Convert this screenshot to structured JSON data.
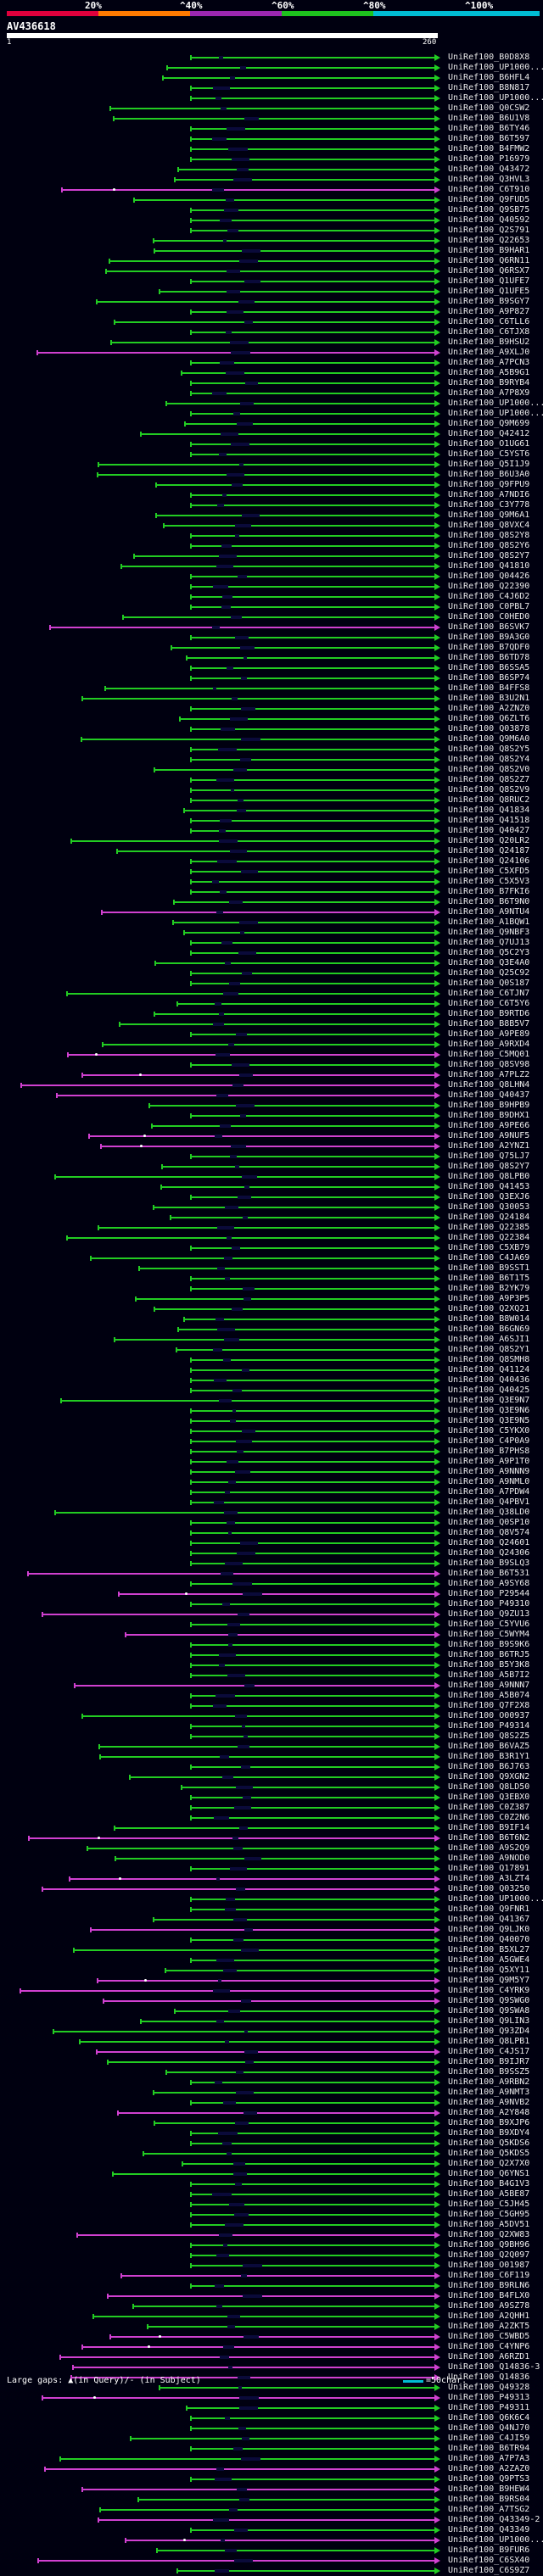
{
  "scale": {
    "labels": [
      "20%",
      "^40%",
      "^60%",
      "^80%",
      "^100%"
    ],
    "colors": [
      "#e0003c",
      "#ff7a00",
      "#9c27b0",
      "#1ec21e",
      "#00bcd4"
    ]
  },
  "query": {
    "title": "AV436618",
    "start": "1",
    "end": "260"
  },
  "footer": {
    "left": "Large gaps: ▲(in Query)/- (in Subject)",
    "right": "=50char."
  },
  "colors": {
    "green": "#22cc22",
    "magenta": "#d040d0",
    "background": "#000010"
  },
  "hits": [
    {
      "label": "UniRef100_B0D8X8",
      "color": "green"
    },
    {
      "label": "UniRef100_UP1000...",
      "color": "green"
    },
    {
      "label": "UniRef100_B6HFL4",
      "color": "green"
    },
    {
      "label": "UniRef100_B8N817",
      "color": "green"
    },
    {
      "label": "UniRef100_UP1000...",
      "color": "green"
    },
    {
      "label": "UniRef100_Q0CSW2",
      "color": "green"
    },
    {
      "label": "UniRef100_B6U1V8",
      "color": "green"
    },
    {
      "label": "UniRef100_B6TY46",
      "color": "green"
    },
    {
      "label": "UniRef100_B6T597",
      "color": "green"
    },
    {
      "label": "UniRef100_B4FMW2",
      "color": "green"
    },
    {
      "label": "UniRef100_P16979",
      "color": "green"
    },
    {
      "label": "UniRef100_Q43472",
      "color": "green"
    },
    {
      "label": "UniRef100_Q3HVL3",
      "color": "green"
    },
    {
      "label": "UniRef100_C6T910",
      "color": "magenta"
    },
    {
      "label": "UniRef100_Q9FUD5",
      "color": "green"
    },
    {
      "label": "UniRef100_Q9SB75",
      "color": "green"
    },
    {
      "label": "UniRef100_Q40592",
      "color": "green"
    },
    {
      "label": "UniRef100_Q2S791",
      "color": "green"
    },
    {
      "label": "UniRef100_Q22653",
      "color": "green"
    },
    {
      "label": "UniRef100_B9HAR1",
      "color": "green"
    },
    {
      "label": "UniRef100_Q6RN11",
      "color": "green"
    },
    {
      "label": "UniRef100_Q6RSX7",
      "color": "green"
    },
    {
      "label": "UniRef100_Q1UFE7",
      "color": "green"
    },
    {
      "label": "UniRef100_Q1UFE5",
      "color": "green"
    },
    {
      "label": "UniRef100_B9SGY7",
      "color": "green"
    },
    {
      "label": "UniRef100_A9P827",
      "color": "green"
    },
    {
      "label": "UniRef100_C6TLL6",
      "color": "green"
    },
    {
      "label": "UniRef100_C6TJX8",
      "color": "green"
    },
    {
      "label": "UniRef100_B9HSU2",
      "color": "green"
    },
    {
      "label": "UniRef100_A9XLJ0",
      "color": "magenta"
    },
    {
      "label": "UniRef100_A7PCN3",
      "color": "green"
    },
    {
      "label": "UniRef100_A5B9G1",
      "color": "green"
    },
    {
      "label": "UniRef100_B9RYB4",
      "color": "green"
    },
    {
      "label": "UniRef100_A7P8X9",
      "color": "green"
    },
    {
      "label": "UniRef100_UP1000...",
      "color": "green"
    },
    {
      "label": "UniRef100_UP1000...",
      "color": "green"
    },
    {
      "label": "UniRef100_Q9M699",
      "color": "green"
    },
    {
      "label": "UniRef100_Q42412",
      "color": "green"
    },
    {
      "label": "UniRef100_O1UG61",
      "color": "green"
    },
    {
      "label": "UniRef100_C5YST6",
      "color": "green"
    },
    {
      "label": "UniRef100_Q5I1J9",
      "color": "green"
    },
    {
      "label": "UniRef100_B6U3A0",
      "color": "green"
    },
    {
      "label": "UniRef100_Q9FPU9",
      "color": "green"
    },
    {
      "label": "UniRef100_A7NDI6",
      "color": "green"
    },
    {
      "label": "UniRef100_C3Y778",
      "color": "green"
    },
    {
      "label": "UniRef100_Q9M6A1",
      "color": "green"
    },
    {
      "label": "UniRef100_Q8VXC4",
      "color": "green"
    },
    {
      "label": "UniRef100_Q8S2Y8",
      "color": "green"
    },
    {
      "label": "UniRef100_Q8S2Y6",
      "color": "green"
    },
    {
      "label": "UniRef100_Q8S2Y7",
      "color": "green"
    },
    {
      "label": "UniRef100_Q41810",
      "color": "green"
    },
    {
      "label": "UniRef100_Q04426",
      "color": "green"
    },
    {
      "label": "UniRef100_Q22390",
      "color": "green"
    },
    {
      "label": "UniRef100_C4J6D2",
      "color": "green"
    },
    {
      "label": "UniRef100_C0PBL7",
      "color": "green"
    },
    {
      "label": "UniRef100_C0HED0",
      "color": "green"
    },
    {
      "label": "UniRef100_B6SVK7",
      "color": "magenta"
    },
    {
      "label": "UniRef100_B9A3G0",
      "color": "green"
    },
    {
      "label": "UniRef100_B7QDF0",
      "color": "green"
    },
    {
      "label": "UniRef100_B6TD78",
      "color": "green"
    },
    {
      "label": "UniRef100_B6SSA5",
      "color": "green"
    },
    {
      "label": "UniRef100_B6SP74",
      "color": "green"
    },
    {
      "label": "UniRef100_B4FFS8",
      "color": "green"
    },
    {
      "label": "UniRef100_B3U2N1",
      "color": "green"
    },
    {
      "label": "UniRef100_A2ZNZ0",
      "color": "green"
    },
    {
      "label": "UniRef100_Q6ZLT6",
      "color": "green"
    },
    {
      "label": "UniRef100_Q03878",
      "color": "green"
    },
    {
      "label": "UniRef100_Q9M6A0",
      "color": "green"
    },
    {
      "label": "UniRef100_Q8S2Y5",
      "color": "green"
    },
    {
      "label": "UniRef100_Q8S2Y4",
      "color": "green"
    },
    {
      "label": "UniRef100_Q8S2V0",
      "color": "green"
    },
    {
      "label": "UniRef100_Q8S2Z7",
      "color": "green"
    },
    {
      "label": "UniRef100_Q8S2V9",
      "color": "green"
    },
    {
      "label": "UniRef100_Q8RUC2",
      "color": "green"
    },
    {
      "label": "UniRef100_Q41834",
      "color": "green"
    },
    {
      "label": "UniRef100_Q41518",
      "color": "green"
    },
    {
      "label": "UniRef100_Q40427",
      "color": "green"
    },
    {
      "label": "UniRef100_Q20LR2",
      "color": "green"
    },
    {
      "label": "UniRef100_Q24187",
      "color": "green"
    },
    {
      "label": "UniRef100_Q24106",
      "color": "green"
    },
    {
      "label": "UniRef100_C5XFD5",
      "color": "green"
    },
    {
      "label": "UniRef100_C5X5V3",
      "color": "green"
    },
    {
      "label": "UniRef100_B7FKI6",
      "color": "green"
    },
    {
      "label": "UniRef100_B6T9N0",
      "color": "green"
    },
    {
      "label": "UniRef100_A9NTU4",
      "color": "magenta"
    },
    {
      "label": "UniRef100_A1BQW1",
      "color": "green"
    },
    {
      "label": "UniRef100_Q9NBF3",
      "color": "green"
    },
    {
      "label": "UniRef100_Q7UJ13",
      "color": "green"
    },
    {
      "label": "UniRef100_Q5C2Y3",
      "color": "green"
    },
    {
      "label": "UniRef100_Q3E4A0",
      "color": "green"
    },
    {
      "label": "UniRef100_Q25C92",
      "color": "green"
    },
    {
      "label": "UniRef100_Q0S187",
      "color": "green"
    },
    {
      "label": "UniRef100_C6TJN7",
      "color": "green"
    },
    {
      "label": "UniRef100_C6T5Y6",
      "color": "green"
    },
    {
      "label": "UniRef100_B9RTD6",
      "color": "green"
    },
    {
      "label": "UniRef100_B8B5V7",
      "color": "green"
    },
    {
      "label": "UniRef100_A9PE89",
      "color": "green"
    },
    {
      "label": "UniRef100_A9RXD4",
      "color": "green"
    },
    {
      "label": "UniRef100_C5MQ01",
      "color": "magenta"
    },
    {
      "label": "UniRef100_Q8SV98",
      "color": "green"
    },
    {
      "label": "UniRef100_A7PLZ2",
      "color": "magenta"
    },
    {
      "label": "UniRef100_Q8LHN4",
      "color": "magenta"
    },
    {
      "label": "UniRef100_Q40437",
      "color": "magenta"
    },
    {
      "label": "UniRef100_B9HPB9",
      "color": "green"
    },
    {
      "label": "UniRef100_B9DHX1",
      "color": "green"
    },
    {
      "label": "UniRef100_A9PE66",
      "color": "green"
    },
    {
      "label": "UniRef100_A9NUF5",
      "color": "magenta"
    },
    {
      "label": "UniRef100_A2YNZ1",
      "color": "magenta"
    },
    {
      "label": "UniRef100_Q75LJ7",
      "color": "green"
    },
    {
      "label": "UniRef100_Q8S2Y7",
      "color": "green"
    },
    {
      "label": "UniRef100_Q8LPB0",
      "color": "green"
    },
    {
      "label": "UniRef100_Q41453",
      "color": "green"
    },
    {
      "label": "UniRef100_Q3EXJ6",
      "color": "green"
    },
    {
      "label": "UniRef100_Q30053",
      "color": "green"
    },
    {
      "label": "UniRef100_Q24184",
      "color": "green"
    },
    {
      "label": "UniRef100_Q22385",
      "color": "green"
    },
    {
      "label": "UniRef100_Q22384",
      "color": "green"
    },
    {
      "label": "UniRef100_C5XB79",
      "color": "green"
    },
    {
      "label": "UniRef100_C4JA69",
      "color": "green"
    },
    {
      "label": "UniRef100_B9SST1",
      "color": "green"
    },
    {
      "label": "UniRef100_B6T1T5",
      "color": "green"
    },
    {
      "label": "UniRef100_B2YK79",
      "color": "green"
    },
    {
      "label": "UniRef100_A9P3P5",
      "color": "green"
    },
    {
      "label": "UniRef100_Q2XQ21",
      "color": "green"
    },
    {
      "label": "UniRef100_B8W014",
      "color": "green"
    },
    {
      "label": "UniRef100_B6GN69",
      "color": "green"
    },
    {
      "label": "UniRef100_A6SJI1",
      "color": "green"
    },
    {
      "label": "UniRef100_Q8S2Y1",
      "color": "green"
    },
    {
      "label": "UniRef100_Q8SMH8",
      "color": "green"
    },
    {
      "label": "UniRef100_Q41124",
      "color": "green"
    },
    {
      "label": "UniRef100_Q40436",
      "color": "green"
    },
    {
      "label": "UniRef100_Q40425",
      "color": "green"
    },
    {
      "label": "UniRef100_Q3E9N7",
      "color": "green"
    },
    {
      "label": "UniRef100_Q3E9N6",
      "color": "green"
    },
    {
      "label": "UniRef100_Q3E9N5",
      "color": "green"
    },
    {
      "label": "UniRef100_C5YKX0",
      "color": "green"
    },
    {
      "label": "UniRef100_C4P0A9",
      "color": "green"
    },
    {
      "label": "UniRef100_B7PHS8",
      "color": "green"
    },
    {
      "label": "UniRef100_A9P1T0",
      "color": "green"
    },
    {
      "label": "UniRef100_A9NNN9",
      "color": "green"
    },
    {
      "label": "UniRef100_A9NML0",
      "color": "green"
    },
    {
      "label": "UniRef100_A7PDW4",
      "color": "green"
    },
    {
      "label": "UniRef100_Q4PBV1",
      "color": "green"
    },
    {
      "label": "UniRef100_Q38LD0",
      "color": "green"
    },
    {
      "label": "UniRef100_Q0SP10",
      "color": "green"
    },
    {
      "label": "UniRef100_Q8V574",
      "color": "green"
    },
    {
      "label": "UniRef100_Q24601",
      "color": "green"
    },
    {
      "label": "UniRef100_Q24306",
      "color": "green"
    },
    {
      "label": "UniRef100_B9SLQ3",
      "color": "green"
    },
    {
      "label": "UniRef100_B6T531",
      "color": "magenta"
    },
    {
      "label": "UniRef100_A9SY68",
      "color": "green"
    },
    {
      "label": "UniRef100_P29544",
      "color": "magenta"
    },
    {
      "label": "UniRef100_P49310",
      "color": "green"
    },
    {
      "label": "UniRef100_Q9ZU13",
      "color": "magenta"
    },
    {
      "label": "UniRef100_C5YVU6",
      "color": "green"
    },
    {
      "label": "UniRef100_C5WYM4",
      "color": "magenta"
    },
    {
      "label": "UniRef100_B9S9K6",
      "color": "green"
    },
    {
      "label": "UniRef100_B6TRJ5",
      "color": "green"
    },
    {
      "label": "UniRef100_B5Y3K8",
      "color": "green"
    },
    {
      "label": "UniRef100_A5B7I2",
      "color": "green"
    },
    {
      "label": "UniRef100_A9NNN7",
      "color": "magenta"
    },
    {
      "label": "UniRef100_A5B074",
      "color": "green"
    },
    {
      "label": "UniRef100_Q7F2X8",
      "color": "green"
    },
    {
      "label": "UniRef100_O00937",
      "color": "green"
    },
    {
      "label": "UniRef100_P49314",
      "color": "green"
    },
    {
      "label": "UniRef100_Q8S2Z5",
      "color": "green"
    },
    {
      "label": "UniRef100_B6VAZ5",
      "color": "green"
    },
    {
      "label": "UniRef100_B3R1Y1",
      "color": "green"
    },
    {
      "label": "UniRef100_B6J763",
      "color": "green"
    },
    {
      "label": "UniRef100_Q9XGN2",
      "color": "green"
    },
    {
      "label": "UniRef100_Q8LD50",
      "color": "green"
    },
    {
      "label": "UniRef100_Q3EBX0",
      "color": "green"
    },
    {
      "label": "UniRef100_C0Z387",
      "color": "green"
    },
    {
      "label": "UniRef100_C0Z2N6",
      "color": "green"
    },
    {
      "label": "UniRef100_B9IF14",
      "color": "green"
    },
    {
      "label": "UniRef100_B6T6N2",
      "color": "magenta"
    },
    {
      "label": "UniRef100_A9S2Q9",
      "color": "green"
    },
    {
      "label": "UniRef100_A9NOD0",
      "color": "green"
    },
    {
      "label": "UniRef100_Q17891",
      "color": "green"
    },
    {
      "label": "UniRef100_A3LZT4",
      "color": "magenta"
    },
    {
      "label": "UniRef100_Q03250",
      "color": "magenta"
    },
    {
      "label": "UniRef100_UP1000...",
      "color": "green"
    },
    {
      "label": "UniRef100_Q9FNR1",
      "color": "green"
    },
    {
      "label": "UniRef100_Q41367",
      "color": "green"
    },
    {
      "label": "UniRef100_Q9LJK0",
      "color": "magenta"
    },
    {
      "label": "UniRef100_Q40070",
      "color": "green"
    },
    {
      "label": "UniRef100_B5XL27",
      "color": "green"
    },
    {
      "label": "UniRef100_A5GWE4",
      "color": "green"
    },
    {
      "label": "UniRef100_Q5XY11",
      "color": "green"
    },
    {
      "label": "UniRef100_Q9M5Y7",
      "color": "magenta"
    },
    {
      "label": "UniRef100_C4YRK9",
      "color": "magenta"
    },
    {
      "label": "UniRef100_Q9SWG0",
      "color": "magenta"
    },
    {
      "label": "UniRef100_Q9SWA8",
      "color": "green"
    },
    {
      "label": "UniRef100_Q9LIN3",
      "color": "green"
    },
    {
      "label": "UniRef100_Q93ZD4",
      "color": "green"
    },
    {
      "label": "UniRef100_Q8LPB1",
      "color": "green"
    },
    {
      "label": "UniRef100_C4JS17",
      "color": "magenta"
    },
    {
      "label": "UniRef100_B9IJR7",
      "color": "green"
    },
    {
      "label": "UniRef100_B9SSZ5",
      "color": "green"
    },
    {
      "label": "UniRef100_A9RBN2",
      "color": "green"
    },
    {
      "label": "UniRef100_A9NMT3",
      "color": "green"
    },
    {
      "label": "UniRef100_A9NVB2",
      "color": "green"
    },
    {
      "label": "UniRef100_A2Y848",
      "color": "magenta"
    },
    {
      "label": "UniRef100_B9XJP6",
      "color": "green"
    },
    {
      "label": "UniRef100_B9XDY4",
      "color": "green"
    },
    {
      "label": "UniRef100_Q5KDS6",
      "color": "green"
    },
    {
      "label": "UniRef100_Q5KDS5",
      "color": "green"
    },
    {
      "label": "UniRef100_Q2X7X0",
      "color": "green"
    },
    {
      "label": "UniRef100_Q6YNS1",
      "color": "green"
    },
    {
      "label": "UniRef100_B4G1V3",
      "color": "green"
    },
    {
      "label": "UniRef100_A5BE87",
      "color": "green"
    },
    {
      "label": "UniRef100_C5JH45",
      "color": "green"
    },
    {
      "label": "UniRef100_C5GH95",
      "color": "green"
    },
    {
      "label": "UniRef100_A5DV51",
      "color": "green"
    },
    {
      "label": "UniRef100_Q2XW83",
      "color": "magenta"
    },
    {
      "label": "UniRef100_Q9BH96",
      "color": "green"
    },
    {
      "label": "UniRef100_Q2Q097",
      "color": "green"
    },
    {
      "label": "UniRef100_O01987",
      "color": "green"
    },
    {
      "label": "UniRef100_C6F119",
      "color": "magenta"
    },
    {
      "label": "UniRef100_B9RLN6",
      "color": "green"
    },
    {
      "label": "UniRef100_B4FLX0",
      "color": "magenta"
    },
    {
      "label": "UniRef100_A9SZ78",
      "color": "green"
    },
    {
      "label": "UniRef100_A2QHH1",
      "color": "green"
    },
    {
      "label": "UniRef100_A2ZKT5",
      "color": "green"
    },
    {
      "label": "UniRef100_C5WBD5",
      "color": "magenta"
    },
    {
      "label": "UniRef100_C4YNP6",
      "color": "magenta"
    },
    {
      "label": "UniRef100_A6RZD1",
      "color": "magenta"
    },
    {
      "label": "UniRef100_Q14836-3",
      "color": "magenta"
    },
    {
      "label": "UniRef100_Q14836",
      "color": "magenta"
    },
    {
      "label": "UniRef100_Q49328",
      "color": "green"
    },
    {
      "label": "UniRef100_P49313",
      "color": "magenta"
    },
    {
      "label": "UniRef100_P49311",
      "color": "green"
    },
    {
      "label": "UniRef100_Q6K6C4",
      "color": "green"
    },
    {
      "label": "UniRef100_Q4NJ70",
      "color": "green"
    },
    {
      "label": "UniRef100_C4JI59",
      "color": "green"
    },
    {
      "label": "UniRef100_B6TR94",
      "color": "green"
    },
    {
      "label": "UniRef100_A7P7A3",
      "color": "green"
    },
    {
      "label": "UniRef100_A2ZAZ0",
      "color": "magenta"
    },
    {
      "label": "UniRef100_Q9PTS3",
      "color": "green"
    },
    {
      "label": "UniRef100_B9HEW4",
      "color": "magenta"
    },
    {
      "label": "UniRef100_B9RS04",
      "color": "green"
    },
    {
      "label": "UniRef100_A7TSG2",
      "color": "green"
    },
    {
      "label": "UniRef100_Q43349-2",
      "color": "magenta"
    },
    {
      "label": "UniRef100_Q43349",
      "color": "green"
    },
    {
      "label": "UniRef100_UP1000...",
      "color": "magenta"
    },
    {
      "label": "UniRef100_B9FUR6",
      "color": "green"
    },
    {
      "label": "UniRef100_C6SX40",
      "color": "magenta"
    },
    {
      "label": "UniRef100_C6S9Z7",
      "color": "green"
    }
  ]
}
